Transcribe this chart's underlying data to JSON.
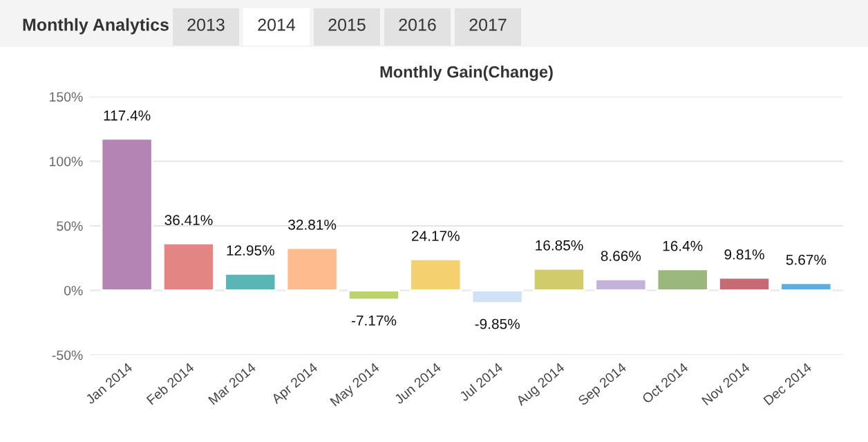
{
  "chart_data": {
    "type": "bar",
    "title": "Monthly Gain(Change)",
    "annotations": [
      "Monthly Analytics",
      "2013",
      "2014",
      "2015",
      "2016",
      "2017"
    ],
    "categories": [
      "Jan 2014",
      "Feb 2014",
      "Mar 2014",
      "Apr 2014",
      "May 2014",
      "Jun 2014",
      "Jul 2014",
      "Aug 2014",
      "Sep 2014",
      "Oct 2014",
      "Nov 2014",
      "Dec 2014"
    ],
    "values": [
      117.4,
      36.41,
      12.95,
      32.81,
      -7.17,
      24.17,
      -9.85,
      16.85,
      8.66,
      16.4,
      9.81,
      5.67
    ],
    "value_labels": [
      "117.4%",
      "36.41%",
      "12.95%",
      "32.81%",
      "-7.17%",
      "24.17%",
      "-9.85%",
      "16.85%",
      "8.66%",
      "16.4%",
      "9.81%",
      "5.67%"
    ],
    "colors": [
      "#b384b4",
      "#e38582",
      "#5ab5b5",
      "#fdbb8e",
      "#b8d46a",
      "#f4d06e",
      "#cfe3f7",
      "#d2cb6c",
      "#c3b3dc",
      "#9bb87c",
      "#c66b73",
      "#5aaee0"
    ],
    "ylim": [
      -50,
      150
    ],
    "yticks": [
      {
        "value": -50,
        "label": "-50%"
      },
      {
        "value": 0,
        "label": "0%"
      },
      {
        "value": 50,
        "label": "50%"
      },
      {
        "value": 100,
        "label": "100%"
      },
      {
        "value": 150,
        "label": "150%"
      }
    ],
    "grid": "y",
    "legend": false
  }
}
